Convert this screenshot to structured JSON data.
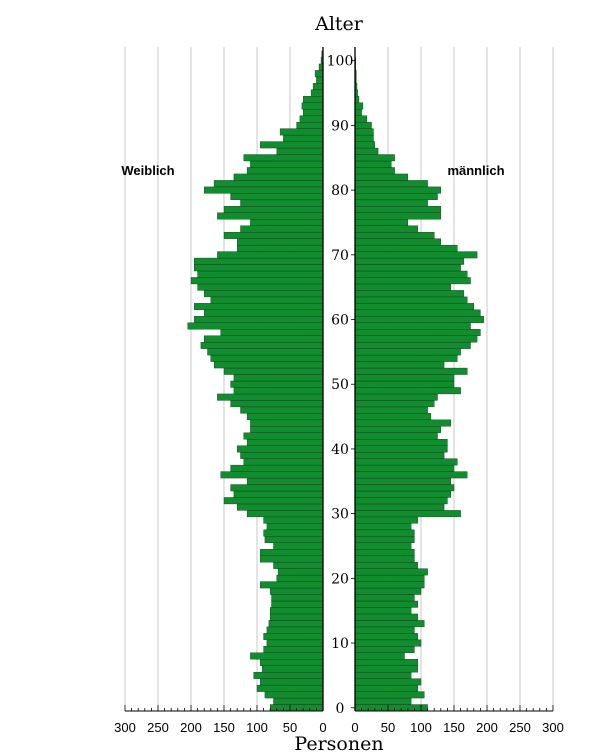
{
  "chart_data": {
    "type": "bar",
    "orientation": "horizontal",
    "title": "",
    "ylabel": "Alter",
    "xlabel": "Personen",
    "ylim": [
      0,
      101
    ],
    "y_ticks": [
      "0",
      "10",
      "20",
      "30",
      "40",
      "50",
      "60",
      "70",
      "80",
      "90",
      "100"
    ],
    "x_ticks_left": [
      "300",
      "250",
      "200",
      "150",
      "100",
      "50",
      "0"
    ],
    "x_ticks_right": [
      "0",
      "50",
      "100",
      "150",
      "200",
      "250",
      "300"
    ],
    "xlim": [
      0,
      300
    ],
    "grid": true,
    "bar_color": "#118c2e",
    "series": [
      {
        "name": "Weiblich",
        "side": "left",
        "values": [
          80,
          75,
          88,
          100,
          95,
          105,
          92,
          95,
          110,
          90,
          85,
          90,
          85,
          82,
          80,
          80,
          78,
          78,
          80,
          95,
          70,
          68,
          75,
          95,
          95,
          75,
          88,
          90,
          85,
          90,
          115,
          130,
          150,
          135,
          140,
          115,
          155,
          140,
          120,
          125,
          130,
          115,
          120,
          110,
          110,
          115,
          125,
          140,
          160,
          135,
          140,
          135,
          150,
          165,
          170,
          175,
          185,
          180,
          155,
          205,
          195,
          180,
          195,
          170,
          180,
          190,
          200,
          190,
          195,
          195,
          160,
          130,
          130,
          150,
          125,
          110,
          160,
          150,
          125,
          140,
          180,
          165,
          135,
          115,
          110,
          120,
          70,
          95,
          60,
          65,
          40,
          35,
          30,
          32,
          30,
          18,
          15,
          10,
          12,
          6,
          3,
          2
        ]
      },
      {
        "name": "männlich",
        "side": "right",
        "values": [
          110,
          85,
          105,
          95,
          100,
          85,
          95,
          95,
          75,
          90,
          100,
          95,
          90,
          105,
          95,
          85,
          95,
          90,
          100,
          105,
          105,
          110,
          95,
          90,
          90,
          85,
          90,
          90,
          85,
          95,
          160,
          135,
          140,
          145,
          150,
          145,
          170,
          150,
          155,
          135,
          140,
          140,
          125,
          130,
          145,
          115,
          110,
          120,
          125,
          160,
          150,
          150,
          170,
          135,
          155,
          160,
          175,
          185,
          190,
          175,
          195,
          190,
          180,
          170,
          165,
          145,
          175,
          170,
          160,
          165,
          185,
          155,
          130,
          120,
          95,
          80,
          130,
          130,
          110,
          125,
          130,
          110,
          80,
          60,
          55,
          60,
          35,
          30,
          28,
          28,
          25,
          18,
          10,
          12,
          6,
          4,
          3,
          2,
          2,
          1,
          1,
          0
        ]
      }
    ]
  }
}
